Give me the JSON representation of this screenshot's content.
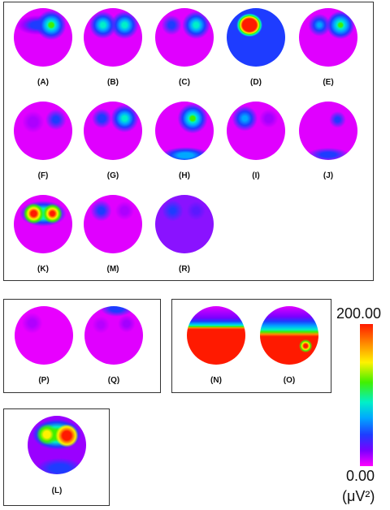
{
  "maps": [
    {
      "id": "A",
      "label": "(A)"
    },
    {
      "id": "B",
      "label": "(B)"
    },
    {
      "id": "C",
      "label": "(C)"
    },
    {
      "id": "D",
      "label": "(D)"
    },
    {
      "id": "E",
      "label": "(E)"
    },
    {
      "id": "F",
      "label": "(F)"
    },
    {
      "id": "G",
      "label": "(G)"
    },
    {
      "id": "H",
      "label": "(H)"
    },
    {
      "id": "I",
      "label": "(I)"
    },
    {
      "id": "J",
      "label": "(J)"
    },
    {
      "id": "K",
      "label": "(K)"
    },
    {
      "id": "M",
      "label": "(M)"
    },
    {
      "id": "R",
      "label": "(R)"
    },
    {
      "id": "P",
      "label": "(P)"
    },
    {
      "id": "Q",
      "label": "(Q)"
    },
    {
      "id": "N",
      "label": "(N)"
    },
    {
      "id": "O",
      "label": "(O)"
    },
    {
      "id": "L",
      "label": "(L)"
    }
  ],
  "colorbar": {
    "max_label": "200.00",
    "min_label": "0.00",
    "unit_label": "(μV²)",
    "colors": [
      "#ff1a00",
      "#ff8c00",
      "#fff200",
      "#41f000",
      "#00f0c8",
      "#00a8ff",
      "#1e3cff",
      "#7a00ff",
      "#ff00ff"
    ]
  }
}
